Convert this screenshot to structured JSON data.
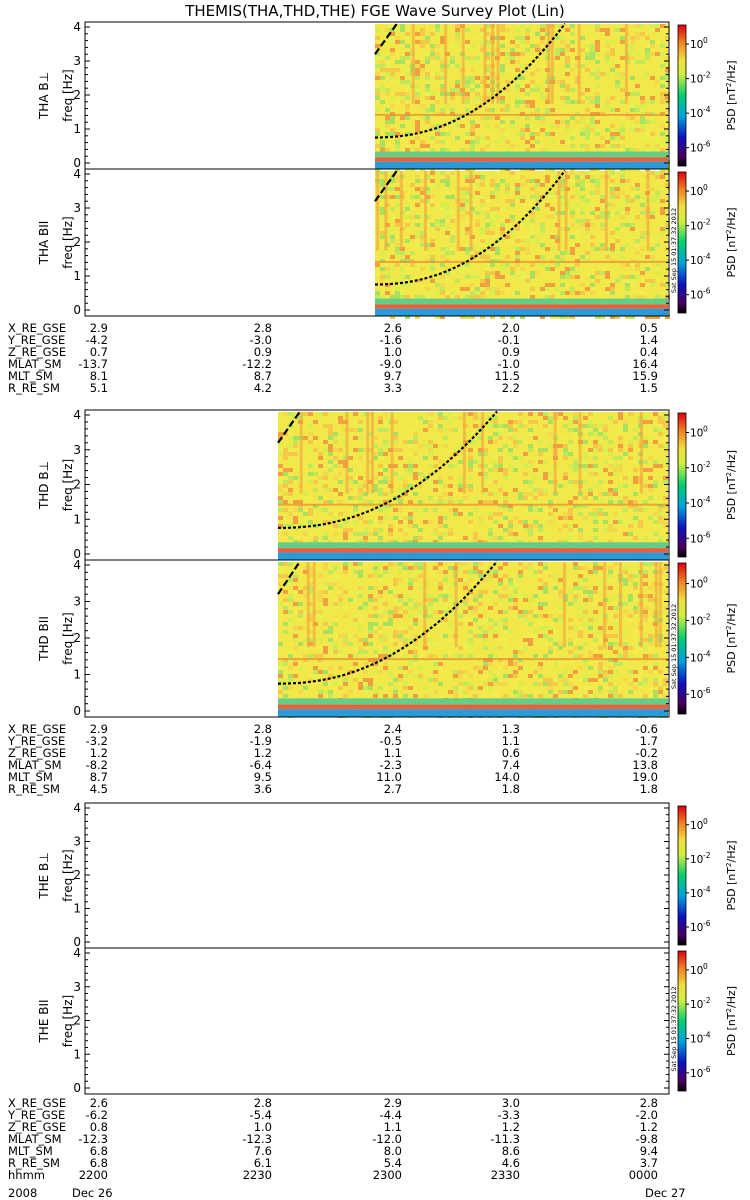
{
  "title": "THEMIS(THA,THD,THE) FGE Wave Survey Plot (Lin)",
  "colorbar": {
    "label_main": "PSD [nT",
    "label_sup": "2",
    "label_end": "/Hz]",
    "ticks": [
      "10",
      "10",
      "10",
      "10"
    ],
    "tick_exps": [
      "0",
      "-2",
      "-4",
      "-6"
    ],
    "stamp": "Sat Sep 15 01:37:32 2012"
  },
  "colors": {
    "spec_bg": "#f2e84a",
    "bottom_band": "#2a9ad8"
  },
  "chart_data": {
    "type": "heatmap",
    "y_tick_labels": [
      "0",
      "1",
      "2",
      "3",
      "4"
    ],
    "ylabel": "freq [Hz]",
    "ylim": [
      0,
      4
    ],
    "panels": [
      {
        "probe": "THA",
        "component": "B⊥",
        "label": "THA B⊥",
        "data_start": "2236"
      },
      {
        "probe": "THA",
        "component": "BII",
        "label": "THA BII",
        "data_start": "2236"
      },
      {
        "probe": "THD",
        "component": "B⊥",
        "label": "THD B⊥",
        "data_start": "2222"
      },
      {
        "probe": "THD",
        "component": "BII",
        "label": "THD BII",
        "data_start": "2222"
      },
      {
        "probe": "THE",
        "component": "B⊥",
        "label": "THE B⊥",
        "data_start": null
      },
      {
        "probe": "THE",
        "component": "BII",
        "label": "THE BII",
        "data_start": null
      }
    ]
  },
  "ephemeris": [
    {
      "rows": [
        {
          "label": "X_RE_GSE",
          "values": [
            "2.9",
            "2.8",
            "2.6",
            "2.0",
            "0.5"
          ]
        },
        {
          "label": "Y_RE_GSE",
          "values": [
            "-4.2",
            "-3.0",
            "-1.6",
            "-0.1",
            "1.4"
          ]
        },
        {
          "label": "Z_RE_GSE",
          "values": [
            "0.7",
            "0.9",
            "1.0",
            "0.9",
            "0.4"
          ]
        },
        {
          "label": "MLAT_SM",
          "values": [
            "-13.7",
            "-12.2",
            "-9.0",
            "-1.0",
            "16.4"
          ]
        },
        {
          "label": "MLT_SM",
          "values": [
            "8.1",
            "8.7",
            "9.7",
            "11.5",
            "15.9"
          ]
        },
        {
          "label": "R_RE_SM",
          "values": [
            "5.1",
            "4.2",
            "3.3",
            "2.2",
            "1.5"
          ]
        }
      ]
    },
    {
      "rows": [
        {
          "label": "X_RE_GSE",
          "values": [
            "2.9",
            "2.8",
            "2.4",
            "1.3",
            "-0.6"
          ]
        },
        {
          "label": "Y_RE_GSE",
          "values": [
            "-3.2",
            "-1.9",
            "-0.5",
            "1.1",
            "1.7"
          ]
        },
        {
          "label": "Z_RE_GSE",
          "values": [
            "1.2",
            "1.2",
            "1.1",
            "0.6",
            "-0.2"
          ]
        },
        {
          "label": "MLAT_SM",
          "values": [
            "-8.2",
            "-6.4",
            "-2.3",
            "7.4",
            "13.8"
          ]
        },
        {
          "label": "MLT_SM",
          "values": [
            "8.7",
            "9.5",
            "11.0",
            "14.0",
            "19.0"
          ]
        },
        {
          "label": "R_RE_SM",
          "values": [
            "4.5",
            "3.6",
            "2.7",
            "1.8",
            "1.8"
          ]
        }
      ]
    },
    {
      "rows": [
        {
          "label": "X_RE_GSE",
          "values": [
            "2.6",
            "2.8",
            "2.9",
            "3.0",
            "2.8"
          ]
        },
        {
          "label": "Y_RE_GSE",
          "values": [
            "-6.2",
            "-5.4",
            "-4.4",
            "-3.3",
            "-2.0"
          ]
        },
        {
          "label": "Z_RE_GSE",
          "values": [
            "0.8",
            "1.0",
            "1.1",
            "1.2",
            "1.2"
          ]
        },
        {
          "label": "MLAT_SM",
          "values": [
            "-12.3",
            "-12.3",
            "-12.0",
            "-11.3",
            "-9.8"
          ]
        },
        {
          "label": "MLT_SM",
          "values": [
            "6.8",
            "7.6",
            "8.0",
            "8.6",
            "9.4"
          ]
        },
        {
          "label": "R_RE_SM",
          "values": [
            "6.8",
            "6.1",
            "5.4",
            "4.6",
            "3.7"
          ]
        },
        {
          "label": "hhmm",
          "values": [
            "2200",
            "2230",
            "2300",
            "2330",
            "0000"
          ]
        }
      ]
    }
  ],
  "footer": {
    "year": "2008",
    "date_start": "Dec 26",
    "date_end": "Dec 27"
  }
}
